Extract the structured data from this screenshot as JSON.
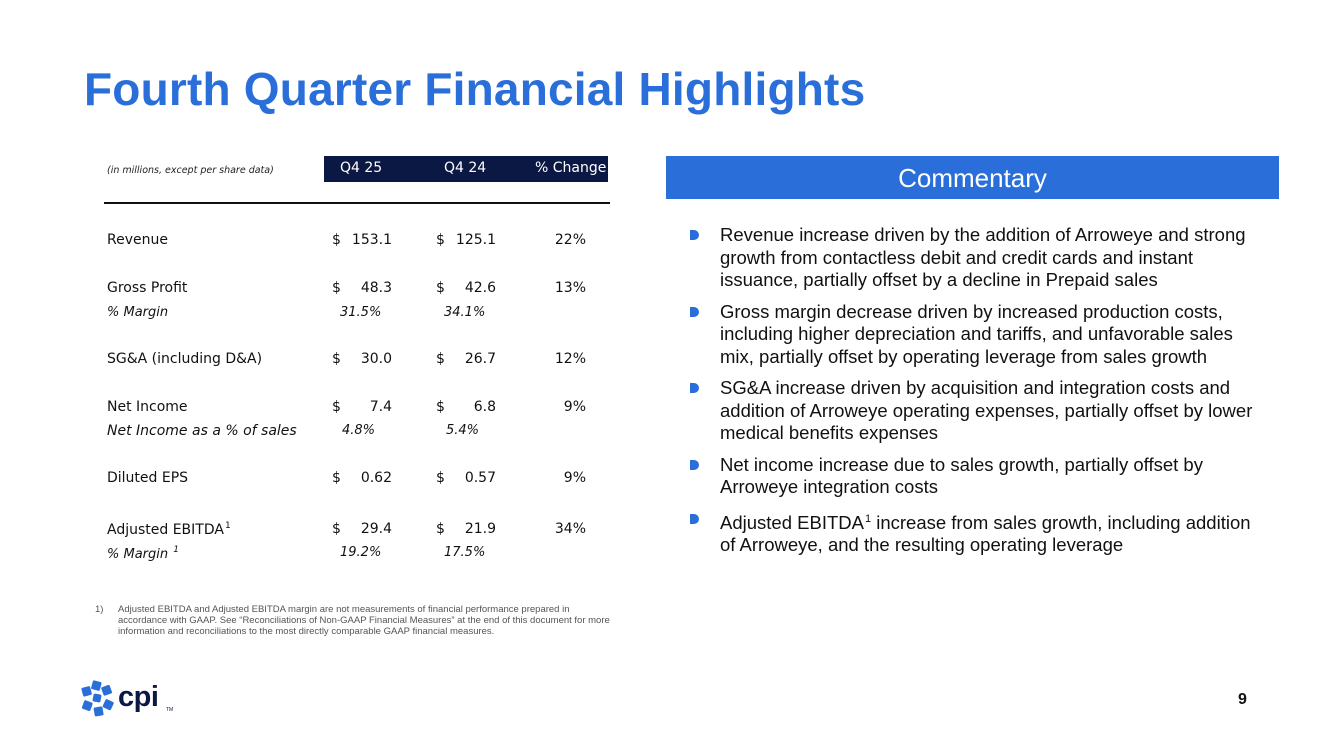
{
  "title": "Fourth Quarter Financial Highlights",
  "table": {
    "note": "(in millions, except per share data)",
    "columns": [
      "Q4 25",
      "Q4 24",
      "% Change"
    ],
    "revenue": {
      "label": "Revenue",
      "dollar": "$",
      "q425": "153.1",
      "q424": "125.1",
      "change": "22%"
    },
    "gross_profit": {
      "label": "Gross Profit",
      "dollar": "$",
      "q425": "48.3",
      "q424": "42.6",
      "change": "13%"
    },
    "gross_margin": {
      "label": "% Margin",
      "q425": "31.5%",
      "q424": "34.1%"
    },
    "sga": {
      "label": "SG&A (including D&A)",
      "dollar": "$",
      "q425": "30.0",
      "q424": "26.7",
      "change": "12%"
    },
    "net_income": {
      "label": "Net Income",
      "dollar": "$",
      "q425": "7.4",
      "q424": "6.8",
      "change": "9%"
    },
    "net_income_pct": {
      "label": "Net Income as a % of sales",
      "q425": "4.8%",
      "q424": "5.4%"
    },
    "eps": {
      "label": "Diluted EPS",
      "dollar": "$",
      "q425": "0.62",
      "q424": "0.57",
      "change": "9%"
    },
    "ebitda": {
      "label": "Adjusted EBITDA",
      "sup": "1",
      "dollar": "$",
      "q425": "29.4",
      "q424": "21.9",
      "change": "34%"
    },
    "ebitda_margin": {
      "label": "% Margin ",
      "sup": "1",
      "q425": "19.2%",
      "q424": "17.5%"
    }
  },
  "footnote": {
    "number": "1)",
    "text": "Adjusted EBITDA and Adjusted EBITDA margin are not measurements of financial performance prepared in accordance with GAAP. See “Reconciliations of Non-GAAP Financial Measures” at the end of this document for more information and reconciliations to the most directly comparable GAAP financial measures."
  },
  "commentary": {
    "heading": "Commentary",
    "bullets": [
      {
        "text": "Revenue increase driven by the addition of Arroweye and strong growth from contactless debit and credit cards and instant issuance, partially offset by a decline in Prepaid sales"
      },
      {
        "text": "Gross margin decrease driven by increased production costs, including higher depreciation and tariffs, and unfavorable sales mix, partially offset by operating leverage from sales growth"
      },
      {
        "text": "SG&A increase driven by acquisition and integration costs and addition of Arroweye operating expenses, partially offset by lower medical benefits expenses"
      },
      {
        "text": "Net income increase due to sales growth, partially offset by Arroweye integration costs"
      },
      {
        "pre": "Adjusted EBITDA",
        "sup": "1",
        "post": " increase from sales growth, including addition of Arroweye, and the resulting operating leverage"
      }
    ]
  },
  "logo": {
    "text": "cpi",
    "tm": "TM"
  },
  "page_number": "9",
  "colors": {
    "accent": "#2a6fd9",
    "navy": "#0c1844"
  }
}
